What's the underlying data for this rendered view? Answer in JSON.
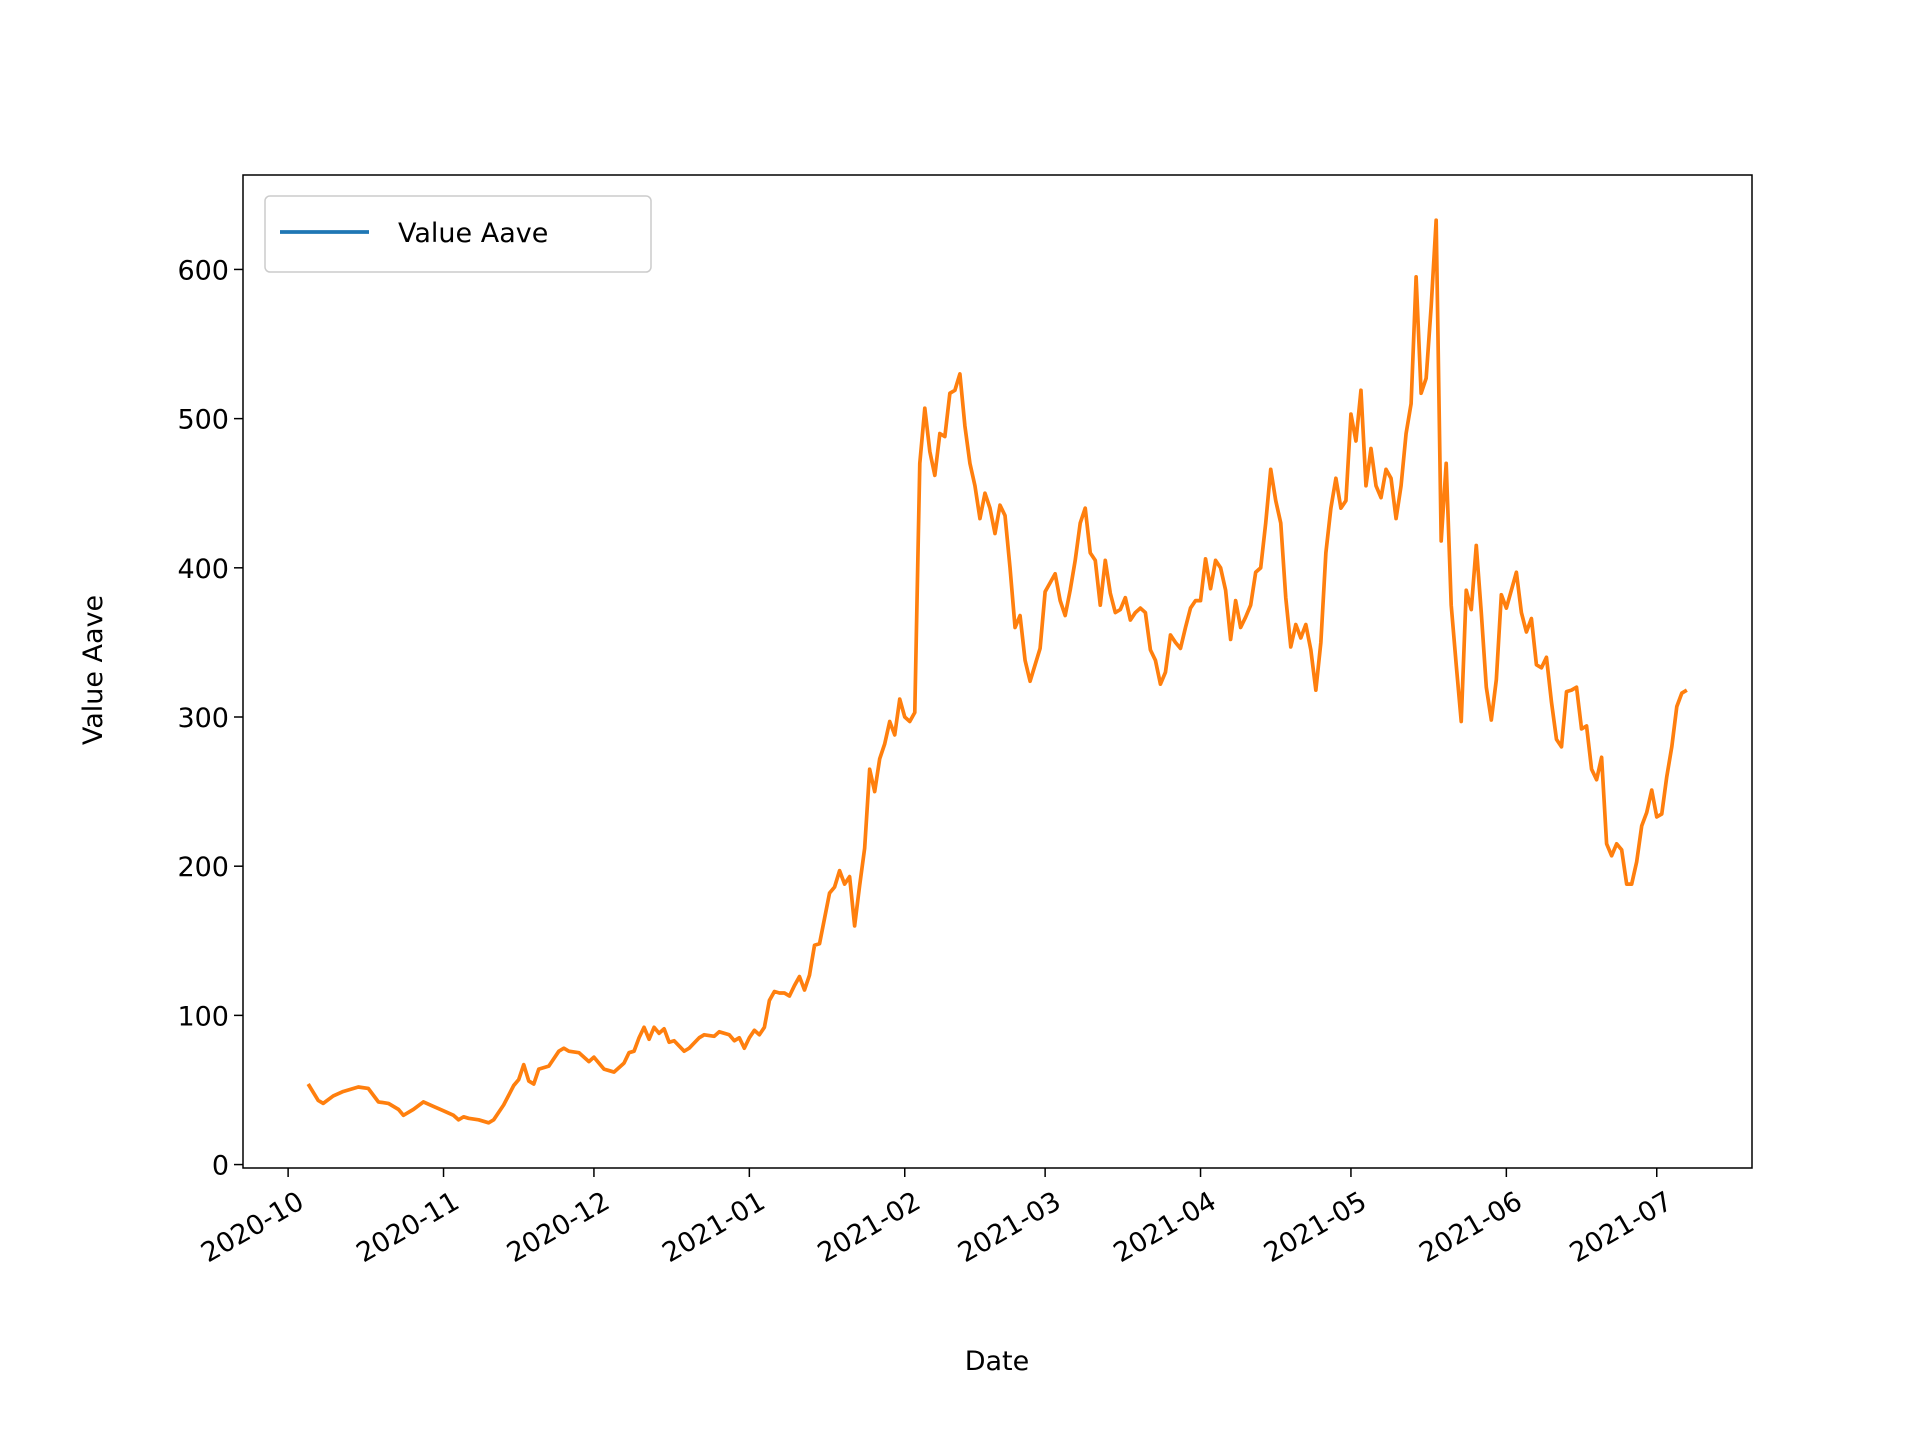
{
  "chart_data": {
    "type": "line",
    "x_label": "Date",
    "y_label": "Value Aave",
    "legend": "upper left",
    "legend_color": "#1f77b4",
    "series": [
      {
        "name": "Value Aave",
        "color": "#ff7f0e",
        "x": [
          "2020-10-05",
          "2020-10-07",
          "2020-10-08",
          "2020-10-10",
          "2020-10-12",
          "2020-10-14",
          "2020-10-15",
          "2020-10-17",
          "2020-10-19",
          "2020-10-21",
          "2020-10-23",
          "2020-10-24",
          "2020-10-26",
          "2020-10-28",
          "2020-10-30",
          "2020-11-01",
          "2020-11-03",
          "2020-11-04",
          "2020-11-05",
          "2020-11-06",
          "2020-11-08",
          "2020-11-10",
          "2020-11-11",
          "2020-11-13",
          "2020-11-15",
          "2020-11-16",
          "2020-11-17",
          "2020-11-18",
          "2020-11-19",
          "2020-11-20",
          "2020-11-22",
          "2020-11-24",
          "2020-11-25",
          "2020-11-26",
          "2020-11-28",
          "2020-11-30",
          "2020-12-01",
          "2020-12-03",
          "2020-12-04",
          "2020-12-05",
          "2020-12-07",
          "2020-12-08",
          "2020-12-09",
          "2020-12-10",
          "2020-12-11",
          "2020-12-12",
          "2020-12-13",
          "2020-12-14",
          "2020-12-15",
          "2020-12-16",
          "2020-12-17",
          "2020-12-19",
          "2020-12-20",
          "2020-12-22",
          "2020-12-23",
          "2020-12-25",
          "2020-12-26",
          "2020-12-28",
          "2020-12-29",
          "2020-12-30",
          "2020-12-31",
          "2021-01-01",
          "2021-01-02",
          "2021-01-03",
          "2021-01-04",
          "2021-01-05",
          "2021-01-06",
          "2021-01-07",
          "2021-01-08",
          "2021-01-09",
          "2021-01-10",
          "2021-01-11",
          "2021-01-12",
          "2021-01-13",
          "2021-01-14",
          "2021-01-15",
          "2021-01-16",
          "2021-01-17",
          "2021-01-18",
          "2021-01-19",
          "2021-01-20",
          "2021-01-21",
          "2021-01-22",
          "2021-01-23",
          "2021-01-24",
          "2021-01-25",
          "2021-01-26",
          "2021-01-27",
          "2021-01-28",
          "2021-01-29",
          "2021-01-30",
          "2021-01-31",
          "2021-02-01",
          "2021-02-02",
          "2021-02-03",
          "2021-02-04",
          "2021-02-05",
          "2021-02-06",
          "2021-02-07",
          "2021-02-08",
          "2021-02-09",
          "2021-02-10",
          "2021-02-11",
          "2021-02-12",
          "2021-02-13",
          "2021-02-14",
          "2021-02-15",
          "2021-02-16",
          "2021-02-17",
          "2021-02-18",
          "2021-02-19",
          "2021-02-20",
          "2021-02-21",
          "2021-02-22",
          "2021-02-23",
          "2021-02-24",
          "2021-02-25",
          "2021-02-26",
          "2021-02-27",
          "2021-02-28",
          "2021-03-01",
          "2021-03-02",
          "2021-03-03",
          "2021-03-04",
          "2021-03-05",
          "2021-03-06",
          "2021-03-07",
          "2021-03-08",
          "2021-03-09",
          "2021-03-10",
          "2021-03-11",
          "2021-03-12",
          "2021-03-13",
          "2021-03-14",
          "2021-03-15",
          "2021-03-16",
          "2021-03-17",
          "2021-03-18",
          "2021-03-19",
          "2021-03-20",
          "2021-03-21",
          "2021-03-22",
          "2021-03-23",
          "2021-03-24",
          "2021-03-25",
          "2021-03-26",
          "2021-03-27",
          "2021-03-28",
          "2021-03-29",
          "2021-03-30",
          "2021-03-31",
          "2021-04-01",
          "2021-04-02",
          "2021-04-03",
          "2021-04-04",
          "2021-04-05",
          "2021-04-06",
          "2021-04-07",
          "2021-04-08",
          "2021-04-09",
          "2021-04-10",
          "2021-04-11",
          "2021-04-12",
          "2021-04-13",
          "2021-04-14",
          "2021-04-15",
          "2021-04-16",
          "2021-04-17",
          "2021-04-18",
          "2021-04-19",
          "2021-04-20",
          "2021-04-21",
          "2021-04-22",
          "2021-04-23",
          "2021-04-24",
          "2021-04-25",
          "2021-04-26",
          "2021-04-27",
          "2021-04-28",
          "2021-04-29",
          "2021-04-30",
          "2021-05-01",
          "2021-05-02",
          "2021-05-03",
          "2021-05-04",
          "2021-05-05",
          "2021-05-06",
          "2021-05-07",
          "2021-05-08",
          "2021-05-09",
          "2021-05-10",
          "2021-05-11",
          "2021-05-12",
          "2021-05-13",
          "2021-05-14",
          "2021-05-15",
          "2021-05-16",
          "2021-05-17",
          "2021-05-18",
          "2021-05-19",
          "2021-05-20",
          "2021-05-21",
          "2021-05-22",
          "2021-05-23",
          "2021-05-24",
          "2021-05-25",
          "2021-05-26",
          "2021-05-27",
          "2021-05-28",
          "2021-05-29",
          "2021-05-30",
          "2021-05-31",
          "2021-06-01",
          "2021-06-02",
          "2021-06-03",
          "2021-06-04",
          "2021-06-05",
          "2021-06-06",
          "2021-06-07",
          "2021-06-08",
          "2021-06-09",
          "2021-06-10",
          "2021-06-11",
          "2021-06-12",
          "2021-06-13",
          "2021-06-14",
          "2021-06-15",
          "2021-06-16",
          "2021-06-17",
          "2021-06-18",
          "2021-06-19",
          "2021-06-20",
          "2021-06-21",
          "2021-06-22",
          "2021-06-23",
          "2021-06-24",
          "2021-06-25",
          "2021-06-26",
          "2021-06-27",
          "2021-06-28",
          "2021-06-29",
          "2021-06-30",
          "2021-07-01",
          "2021-07-02",
          "2021-07-03",
          "2021-07-04",
          "2021-07-05",
          "2021-07-06",
          "2021-07-07"
        ],
        "values": [
          54,
          43,
          41,
          46,
          49,
          51,
          52,
          51,
          42,
          41,
          37,
          33,
          37,
          42,
          39,
          36,
          33,
          30,
          32,
          31,
          30,
          28,
          30,
          40,
          53,
          57,
          67,
          56,
          54,
          64,
          66,
          76,
          78,
          76,
          75,
          69,
          72,
          64,
          63,
          62,
          68,
          75,
          76,
          85,
          92,
          84,
          92,
          88,
          91,
          82,
          83,
          76,
          78,
          85,
          87,
          86,
          89,
          87,
          83,
          85,
          78,
          85,
          90,
          87,
          92,
          110,
          116,
          115,
          115,
          113,
          120,
          126,
          117,
          127,
          147,
          148,
          165,
          182,
          186,
          197,
          188,
          193,
          160,
          187,
          212,
          265,
          250,
          272,
          282,
          297,
          288,
          312,
          300,
          297,
          303,
          470,
          507,
          478,
          462,
          490,
          488,
          517,
          519,
          530,
          495,
          470,
          455,
          433,
          450,
          440,
          423,
          442,
          435,
          400,
          360,
          368,
          338,
          324,
          335,
          346,
          384,
          390,
          396,
          378,
          368,
          385,
          405,
          430,
          440,
          410,
          405,
          375,
          405,
          383,
          370,
          372,
          380,
          365,
          370,
          373,
          370,
          345,
          338,
          322,
          330,
          355,
          350,
          346,
          360,
          373,
          378,
          378,
          406,
          386,
          405,
          400,
          385,
          352,
          378,
          360,
          367,
          375,
          397,
          400,
          430,
          466,
          445,
          430,
          380,
          347,
          362,
          353,
          362,
          345,
          318,
          350,
          410,
          440,
          460,
          440,
          445,
          503,
          485,
          519,
          455,
          480,
          455,
          447,
          466,
          460,
          433,
          455,
          490,
          510,
          595,
          517,
          527,
          575,
          633,
          418,
          470,
          375,
          335,
          297,
          385,
          372,
          415,
          370,
          320,
          298,
          325,
          382,
          373,
          385,
          397,
          370,
          357,
          366,
          335,
          333,
          340,
          310,
          285,
          280,
          317,
          318,
          320,
          292,
          294,
          265,
          258,
          273,
          215,
          207,
          215,
          211,
          188,
          188,
          203,
          227,
          236,
          251,
          233,
          235,
          260,
          280,
          307,
          316,
          318
        ]
      }
    ],
    "xlim": [
      "2020-09-22",
      "2021-07-20"
    ],
    "xticks": [
      "2020-10",
      "2020-11",
      "2020-12",
      "2021-01",
      "2021-02",
      "2021-03",
      "2021-04",
      "2021-05",
      "2021-06",
      "2021-07"
    ],
    "ylim": [
      -2.3,
      663.3
    ],
    "yticks": [
      0,
      100,
      200,
      300,
      400,
      500,
      600
    ]
  }
}
